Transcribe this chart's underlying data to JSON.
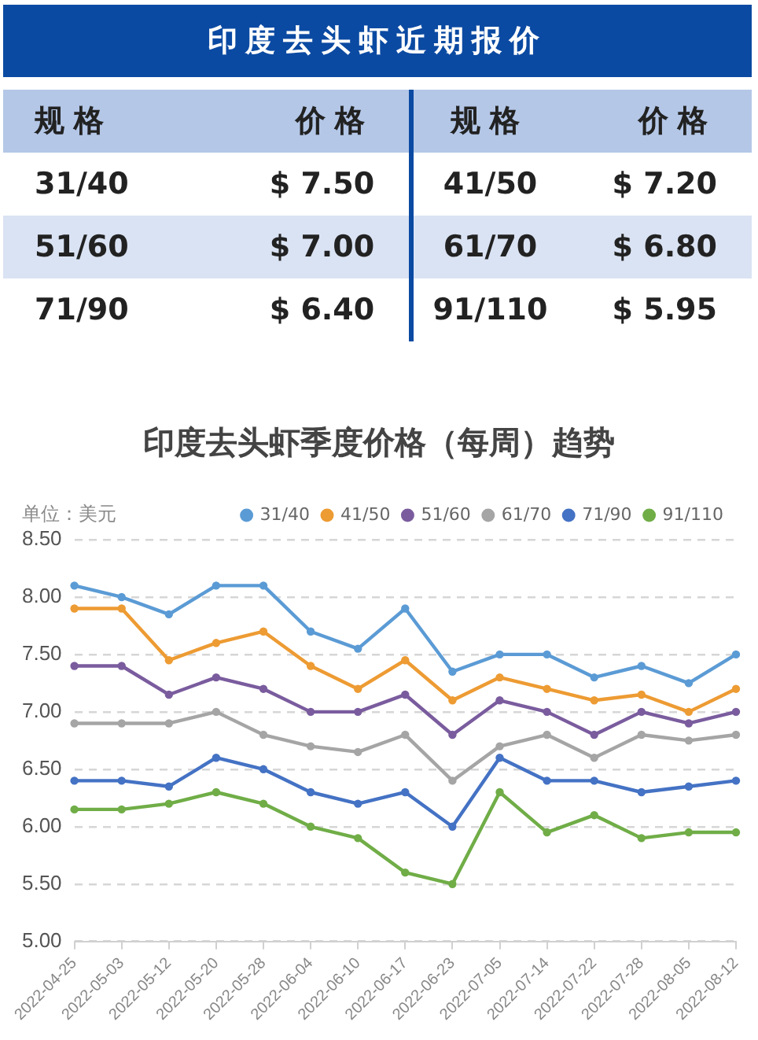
{
  "chart_data": [
    {
      "type": "other",
      "title": "印度去头虾近期报价",
      "annotations": [
        "规格",
        "价格",
        "规格",
        "价格",
        "31/40",
        "$ 7.50",
        "41/50",
        "$ 7.20",
        "51/60",
        "$ 7.00",
        "61/70",
        "$ 6.80",
        "71/90",
        "$ 6.40",
        "91/110",
        "$ 5.95"
      ]
    },
    {
      "type": "line",
      "title": "印度去头虾季度价格（每周）趋势",
      "annotations": [
        "单位：美元"
      ],
      "categories": [
        "2022-04-25",
        "2022-05-03",
        "2022-05-12",
        "2022-05-20",
        "2022-05-28",
        "2022-06-04",
        "2022-06-10",
        "2022-06-17",
        "2022-06-23",
        "2022-07-05",
        "2022-07-14",
        "2022-07-22",
        "2022-07-28",
        "2022-08-05",
        "2022-08-12"
      ],
      "series": [
        {
          "name": "31/40",
          "color": "#5b9bd5",
          "values": [
            8.1,
            8.0,
            7.85,
            8.1,
            8.1,
            7.7,
            7.55,
            7.9,
            7.35,
            7.5,
            7.5,
            7.3,
            7.4,
            7.25,
            7.5
          ]
        },
        {
          "name": "41/50",
          "color": "#ed9b33",
          "values": [
            7.9,
            7.9,
            7.45,
            7.6,
            7.7,
            7.4,
            7.2,
            7.45,
            7.1,
            7.3,
            7.2,
            7.1,
            7.15,
            7.0,
            7.2
          ]
        },
        {
          "name": "51/60",
          "color": "#7a5c9e",
          "values": [
            7.4,
            7.4,
            7.15,
            7.3,
            7.2,
            7.0,
            7.0,
            7.15,
            6.8,
            7.1,
            7.0,
            6.8,
            7.0,
            6.9,
            7.0
          ]
        },
        {
          "name": "61/70",
          "color": "#a5a5a5",
          "values": [
            6.9,
            6.9,
            6.9,
            7.0,
            6.8,
            6.7,
            6.65,
            6.8,
            6.4,
            6.7,
            6.8,
            6.6,
            6.8,
            6.75,
            6.8
          ]
        },
        {
          "name": "71/90",
          "color": "#4472c4",
          "values": [
            6.4,
            6.4,
            6.35,
            6.6,
            6.5,
            6.3,
            6.2,
            6.3,
            6.0,
            6.6,
            6.4,
            6.4,
            6.3,
            6.35,
            6.4
          ]
        },
        {
          "name": "91/110",
          "color": "#70ad47",
          "values": [
            6.15,
            6.15,
            6.2,
            6.3,
            6.2,
            6.0,
            5.9,
            5.6,
            5.5,
            6.3,
            5.95,
            6.1,
            5.9,
            5.95,
            5.95
          ]
        }
      ],
      "ylim": [
        5.0,
        8.5
      ],
      "yticks": [
        {
          "value": 5.0,
          "label": "5.00"
        },
        {
          "value": 5.5,
          "label": "5.50"
        },
        {
          "value": 6.0,
          "label": "6.00"
        },
        {
          "value": 6.5,
          "label": "6.50"
        },
        {
          "value": 7.0,
          "label": "7.00"
        },
        {
          "value": 7.5,
          "label": "7.50"
        },
        {
          "value": 8.0,
          "label": "8.00"
        },
        {
          "value": 8.5,
          "label": "8.50"
        }
      ],
      "grid": "y",
      "legend": "top right",
      "marker": "circle",
      "line_style": "solid"
    }
  ]
}
